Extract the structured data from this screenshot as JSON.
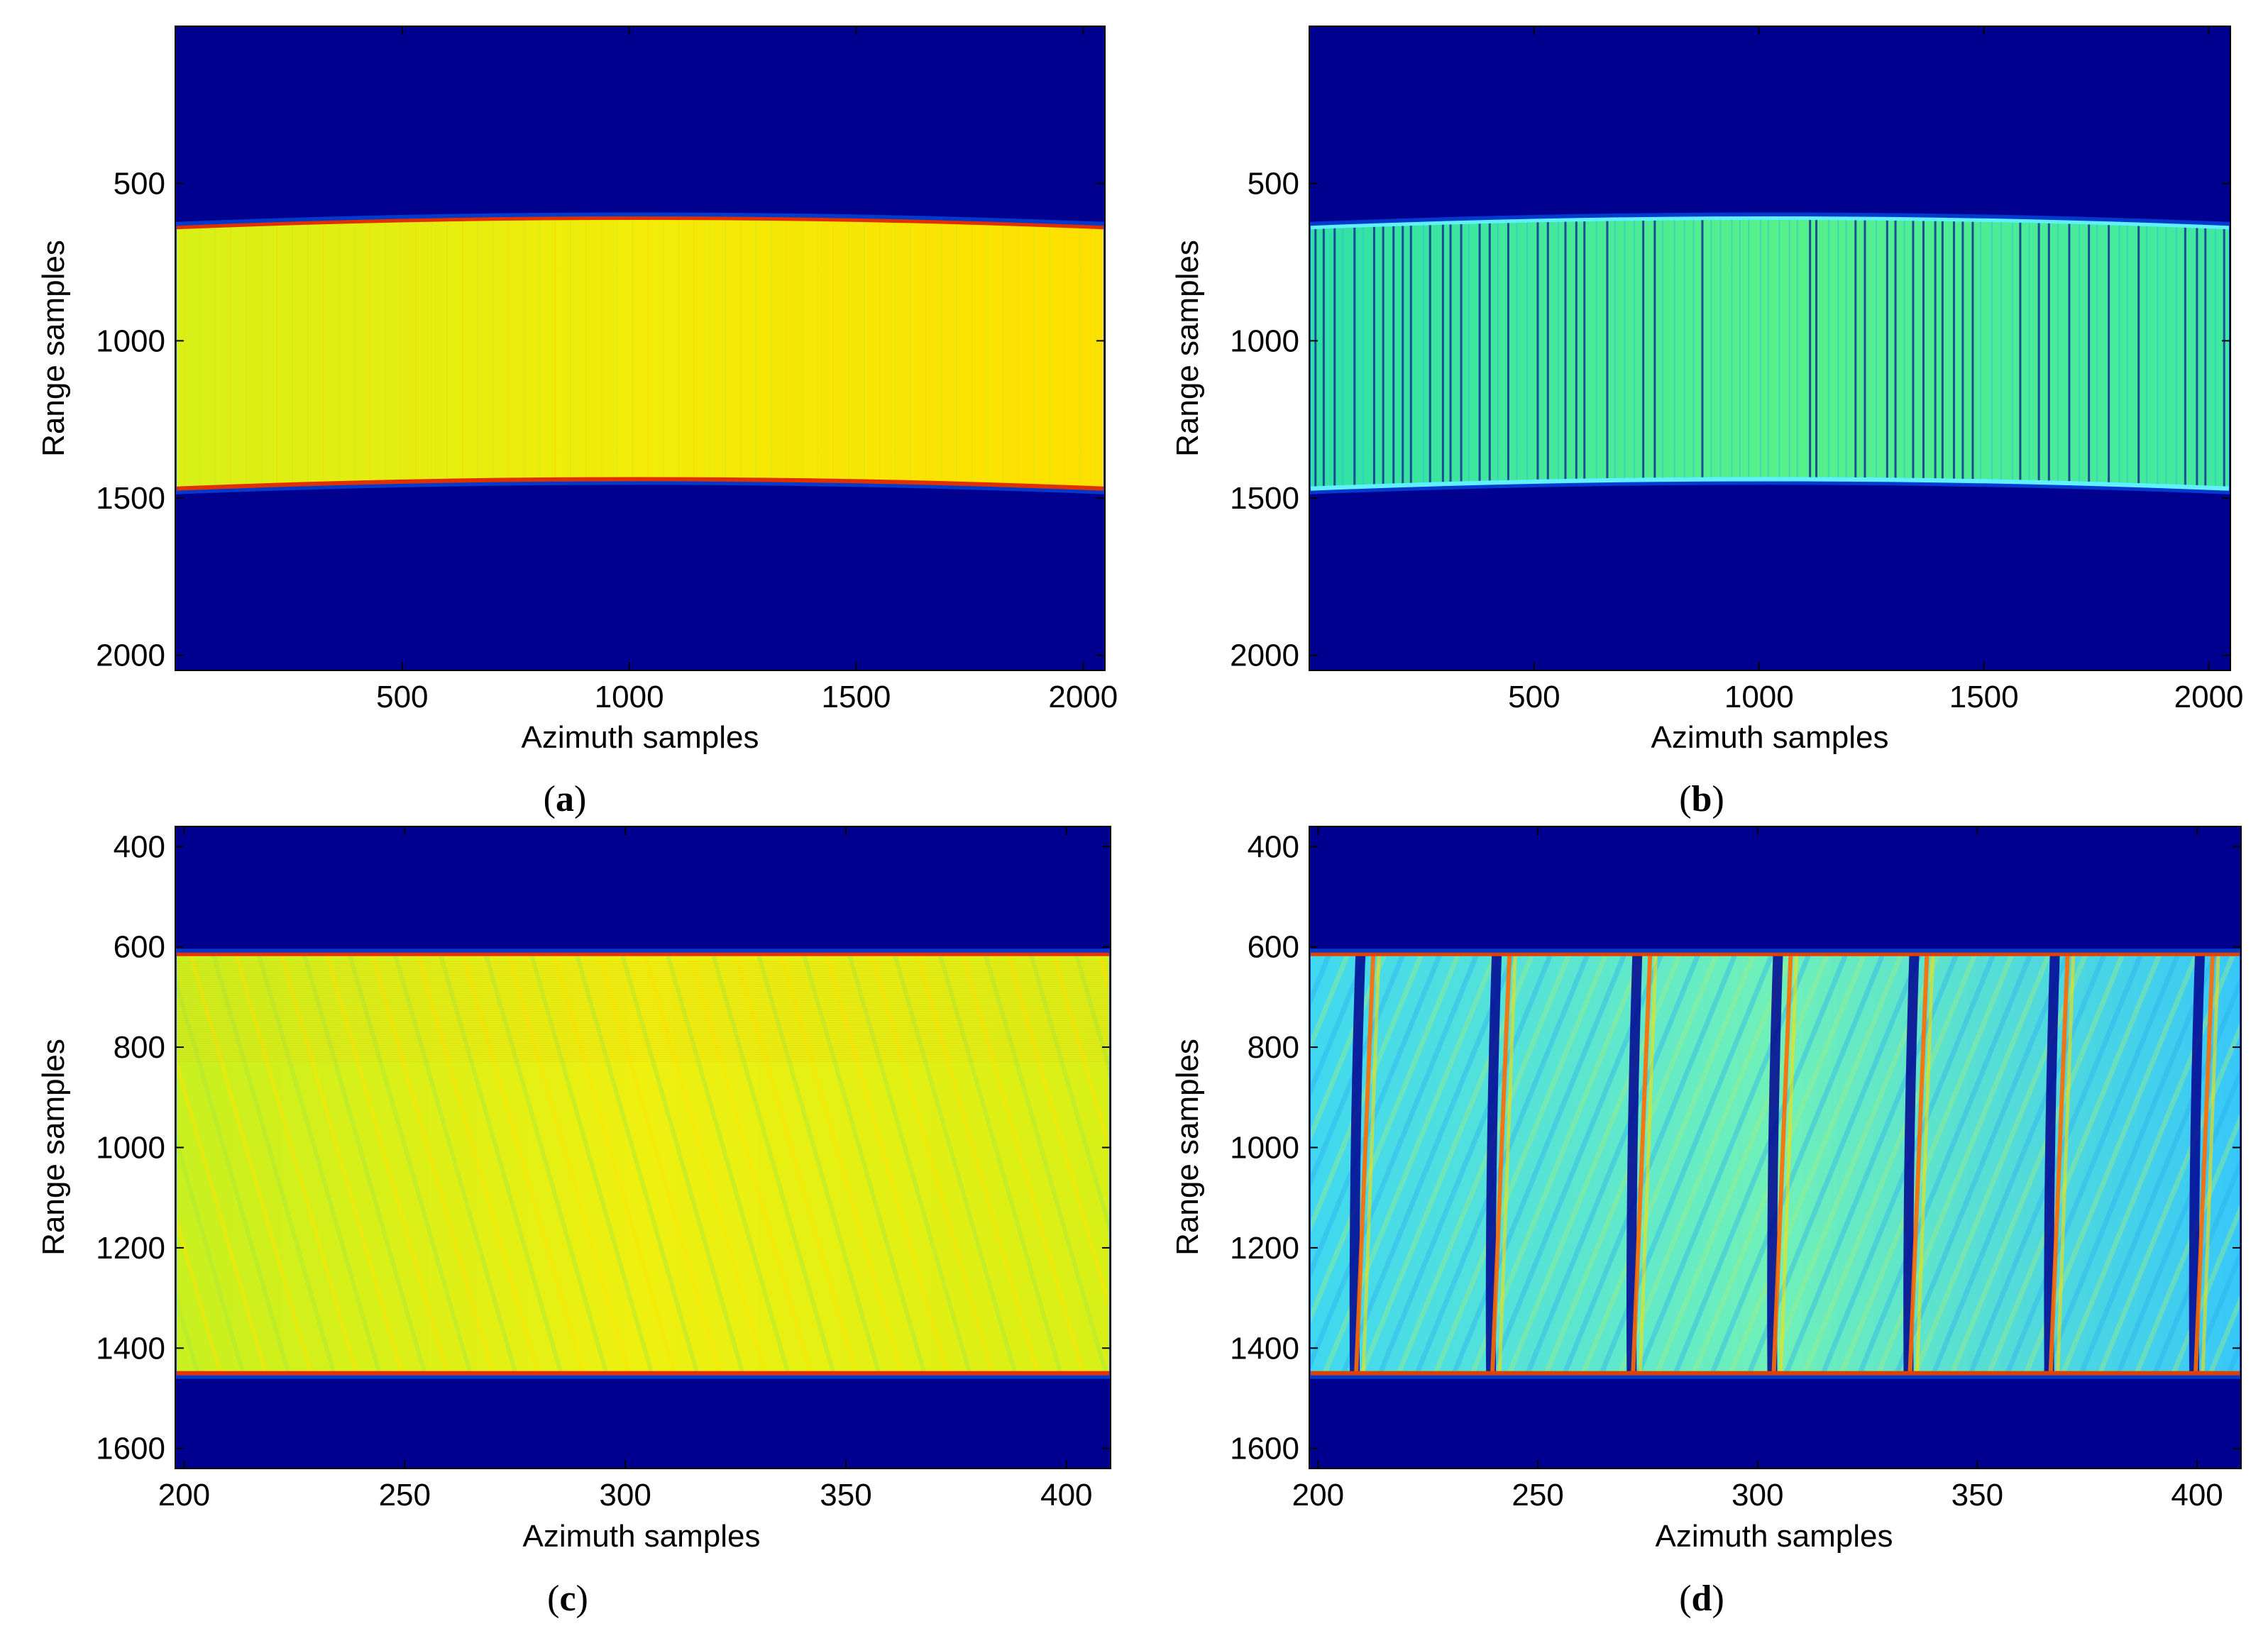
{
  "chart_data": [
    {
      "type": "heatmap",
      "panel_label": "a",
      "xlabel": "Azimuth samples",
      "ylabel": "Range samples",
      "xlim": [
        0,
        2048
      ],
      "ylim": [
        2048,
        0
      ],
      "x_ticks": [
        500,
        1000,
        1500,
        2000
      ],
      "y_ticks": [
        500,
        1000,
        1500,
        2000
      ],
      "band": {
        "top_edge": 640,
        "top_center": 610,
        "bottom_edge": 1470,
        "bottom_center": 1440
      },
      "colormap": "jet",
      "fill_colors": [
        "#d8f018",
        "#f2ec08",
        "#ffe000"
      ],
      "edge_color": "#e03000",
      "background_color": "#00008f",
      "stripes": "none"
    },
    {
      "type": "heatmap",
      "panel_label": "b",
      "xlabel": "Azimuth samples",
      "ylabel": "Range samples",
      "xlim": [
        0,
        2048
      ],
      "ylim": [
        2048,
        0
      ],
      "x_ticks": [
        500,
        1000,
        1500,
        2000
      ],
      "y_ticks": [
        500,
        1000,
        1500,
        2000
      ],
      "band": {
        "top_edge": 640,
        "top_center": 610,
        "bottom_edge": 1470,
        "bottom_center": 1440
      },
      "colormap": "jet",
      "fill_colors": [
        "#30e0a8",
        "#58f08c",
        "#40e8a0"
      ],
      "edge_color": "#60f0ff",
      "background_color": "#00008f",
      "stripes": "vertical"
    },
    {
      "type": "heatmap",
      "panel_label": "c",
      "xlabel": "Azimuth samples",
      "ylabel": "Range samples",
      "xlim": [
        198,
        410
      ],
      "ylim": [
        1640,
        360
      ],
      "x_ticks": [
        200,
        250,
        300,
        350,
        400
      ],
      "y_ticks": [
        400,
        600,
        800,
        1000,
        1200,
        1400,
        1600
      ],
      "band": {
        "top_edge": 615,
        "bottom_edge": 1450
      },
      "colormap": "jet",
      "fill_colors": [
        "#c8f020",
        "#eef010",
        "#d8f018"
      ],
      "edge_color": "#e83000",
      "background_color": "#00008f",
      "stripes": "diagonal"
    },
    {
      "type": "heatmap",
      "panel_label": "d",
      "xlabel": "Azimuth samples",
      "ylabel": "Range samples",
      "xlim": [
        198,
        410
      ],
      "ylim": [
        1640,
        360
      ],
      "x_ticks": [
        200,
        250,
        300,
        350,
        400
      ],
      "y_ticks": [
        400,
        600,
        800,
        1000,
        1200,
        1400,
        1600
      ],
      "band": {
        "top_edge": 615,
        "bottom_edge": 1450
      },
      "colormap": "jet",
      "fill_colors": [
        "#40d8f0",
        "#70f0b8",
        "#38c8f8"
      ],
      "edge_color": "#e04000",
      "background_color": "#00008f",
      "stripes": "chirp",
      "chirp_positions": [
        209,
        240,
        272,
        304,
        335,
        367,
        400
      ]
    }
  ]
}
